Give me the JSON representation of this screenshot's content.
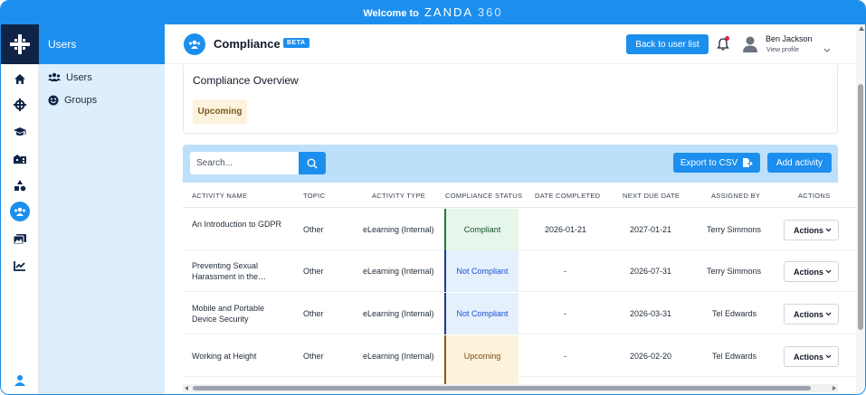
{
  "window": {
    "welcome": "Welcome to",
    "brand": "ZANDA",
    "brand_num": "360"
  },
  "colors": {
    "accent": "#1c8fee",
    "nav_dark": "#0f2447",
    "compliant": "#1c7c3a",
    "not_compliant": "#1e3a8a",
    "upcoming": "#8b5a12"
  },
  "rail": {
    "icons": [
      "home-icon",
      "crosshair-icon",
      "graduation-cap-icon",
      "building-icon",
      "shapes-icon",
      "users-circle-icon",
      "images-icon",
      "chart-line-icon",
      "user-icon"
    ],
    "active": "users-circle-icon"
  },
  "subnav": {
    "title": "Users",
    "items": [
      {
        "label": "Users",
        "icon": "users-icon"
      },
      {
        "label": "Groups",
        "icon": "smile-icon"
      }
    ]
  },
  "header": {
    "title": "Compliance",
    "badge": "BETA",
    "back_label": "Back to user list",
    "user_name": "Ben Jackson",
    "user_sub": "View profile"
  },
  "overview": {
    "title": "Compliance Overview",
    "pill": "Upcoming"
  },
  "toolbar": {
    "search_placeholder": "Search...",
    "export_label": "Export to CSV",
    "add_label": "Add activity"
  },
  "table": {
    "columns": [
      "ACTIVITY NAME",
      "TOPIC",
      "ACTIVITY TYPE",
      "COMPLIANCE STATUS",
      "DATE COMPLETED",
      "NEXT DUE DATE",
      "ASSIGNED BY",
      "ACTIONS"
    ],
    "rows": [
      {
        "name": "An Introduction to GDPR",
        "topic": "Other",
        "type": "eLearning (Internal)",
        "status": "Compliant",
        "completed": "2026-01-21",
        "due": "2027-01-21",
        "assigned": "Terry Simmons",
        "action": "Actions"
      },
      {
        "name": "Preventing Sexual Harassment in the…",
        "topic": "Other",
        "type": "eLearning (Internal)",
        "status": "Not Compliant",
        "completed": "-",
        "due": "2026-07-31",
        "assigned": "Terry Simmons",
        "action": "Actions"
      },
      {
        "name": "Mobile and Portable Device Security",
        "topic": "Other",
        "type": "eLearning (Internal)",
        "status": "Not Compliant",
        "completed": "-",
        "due": "2026-03-31",
        "assigned": "Tel Edwards",
        "action": "Actions"
      },
      {
        "name": "Working at Height",
        "topic": "Other",
        "type": "eLearning (Internal)",
        "status": "Upcoming",
        "completed": "-",
        "due": "2026-02-20",
        "assigned": "Tel Edwards",
        "action": "Actions"
      }
    ]
  }
}
